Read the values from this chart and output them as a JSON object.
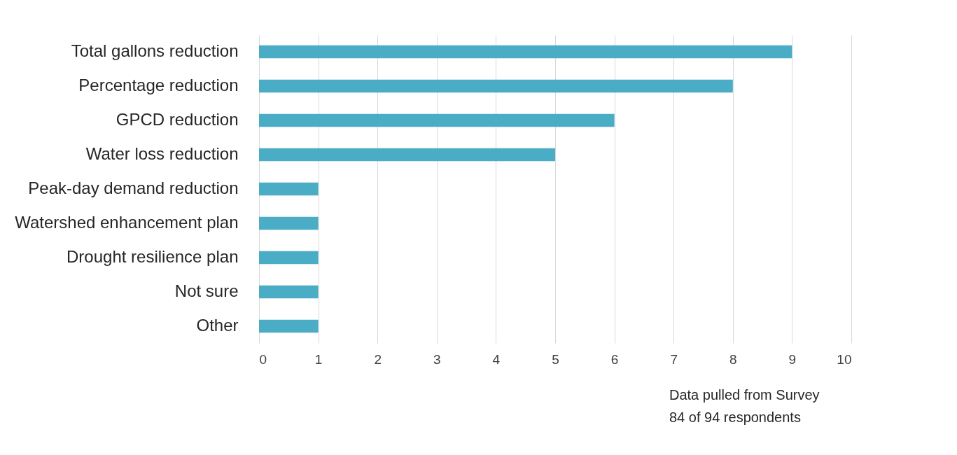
{
  "chart_data": {
    "type": "bar",
    "orientation": "horizontal",
    "categories": [
      "Total gallons reduction",
      "Percentage reduction",
      "GPCD reduction",
      "Water loss reduction",
      "Peak-day demand reduction",
      "Watershed enhancement plan",
      "Drought resilience plan",
      "Not sure",
      "Other"
    ],
    "values": [
      9,
      8,
      6,
      5,
      1,
      1,
      1,
      1,
      1
    ],
    "color": "#4bacc6",
    "xlim": [
      0,
      10
    ],
    "xticks": [
      0,
      1,
      2,
      3,
      4,
      5,
      6,
      7,
      8,
      9,
      10
    ],
    "grid": "x",
    "annotations": [
      "Data pulled from Survey",
      "84 of 94 respondents"
    ]
  }
}
